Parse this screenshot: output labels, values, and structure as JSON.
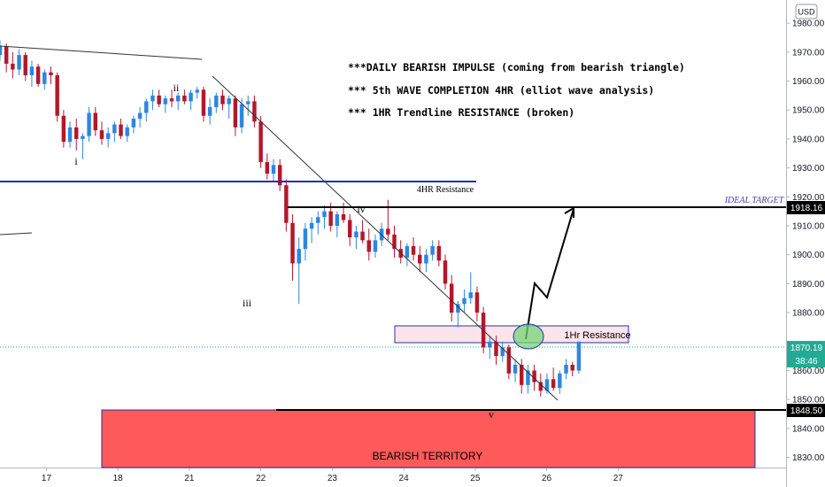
{
  "chart_data": {
    "type": "candlestick",
    "currency": "USD",
    "y_range": [
      1826.5,
      1988
    ],
    "y_ticks": [
      1980,
      1970,
      1960,
      1950,
      1940,
      1930,
      1920,
      1910,
      1900,
      1890,
      1880,
      1860,
      1850,
      1840,
      1830
    ],
    "y_tick_labels": [
      "1980.00",
      "1970.00",
      "1960.00",
      "1950.00",
      "1940.00",
      "1930.00",
      "1920.00",
      "1910.00",
      "1900.00",
      "1890.00",
      "1880.00",
      "1860.00",
      "1850.00",
      "1840.00",
      "1830.00"
    ],
    "x_range": [
      16.35,
      27.35
    ],
    "x_ticks": [
      17,
      18,
      21,
      22,
      23,
      24,
      25,
      26,
      27
    ],
    "x_tick_labels": [
      "17",
      "18",
      "21",
      "22",
      "23",
      "24",
      "25",
      "26",
      "27"
    ],
    "price_labels": {
      "target": "1918.16",
      "current": "1870.19",
      "countdown": "38:46",
      "bearish_line": "1848.50"
    },
    "price_levels": {
      "target": 1918.16,
      "current": 1870.19,
      "bearish_line": 1848.5
    },
    "candle_t_range": [
      16.35,
      24.45
    ],
    "candles_ohlc": [
      [
        1969,
        1974,
        1967,
        1972
      ],
      [
        1972,
        1973,
        1963,
        1966
      ],
      [
        1966,
        1970,
        1961,
        1964
      ],
      [
        1964,
        1971,
        1962,
        1969
      ],
      [
        1969,
        1970,
        1960,
        1962
      ],
      [
        1962,
        1967,
        1958,
        1965
      ],
      [
        1965,
        1966,
        1958,
        1959
      ],
      [
        1959,
        1964,
        1957,
        1963
      ],
      [
        1963,
        1965,
        1959,
        1962
      ],
      [
        1962,
        1963,
        1946,
        1948
      ],
      [
        1948,
        1950,
        1937,
        1939
      ],
      [
        1939,
        1946,
        1937,
        1944
      ],
      [
        1944,
        1947,
        1936,
        1940
      ],
      [
        1940,
        1942,
        1933,
        1941
      ],
      [
        1941,
        1951,
        1939,
        1949
      ],
      [
        1949,
        1951,
        1941,
        1943
      ],
      [
        1943,
        1946,
        1938,
        1940
      ],
      [
        1940,
        1944,
        1937,
        1942
      ],
      [
        1942,
        1946,
        1939,
        1945
      ],
      [
        1945,
        1947,
        1940,
        1941
      ],
      [
        1941,
        1945,
        1939,
        1944
      ],
      [
        1944,
        1948,
        1942,
        1947
      ],
      [
        1947,
        1951,
        1944,
        1949
      ],
      [
        1949,
        1954,
        1946,
        1953
      ],
      [
        1953,
        1957,
        1950,
        1955
      ],
      [
        1955,
        1957,
        1951,
        1952
      ],
      [
        1952,
        1955,
        1949,
        1954
      ],
      [
        1954,
        1957,
        1951,
        1953
      ],
      [
        1953,
        1956,
        1950,
        1955
      ],
      [
        1955,
        1957,
        1952,
        1953
      ],
      [
        1953,
        1957,
        1950,
        1956
      ],
      [
        1956,
        1958,
        1954,
        1957
      ],
      [
        1957,
        1958,
        1946,
        1948
      ],
      [
        1948,
        1954,
        1945,
        1951
      ],
      [
        1951,
        1956,
        1949,
        1955
      ],
      [
        1955,
        1957,
        1950,
        1952
      ],
      [
        1952,
        1955,
        1947,
        1954
      ],
      [
        1954,
        1955,
        1941,
        1944
      ],
      [
        1944,
        1954,
        1942,
        1952
      ],
      [
        1952,
        1955,
        1948,
        1953
      ],
      [
        1953,
        1955,
        1944,
        1946
      ],
      [
        1946,
        1948,
        1930,
        1932
      ],
      [
        1932,
        1935,
        1926,
        1928
      ],
      [
        1928,
        1933,
        1925,
        1931
      ],
      [
        1931,
        1933,
        1922,
        1924
      ],
      [
        1924,
        1926,
        1908,
        1911
      ],
      [
        1911,
        1914,
        1891,
        1897
      ],
      [
        1897,
        1906,
        1883,
        1902
      ],
      [
        1902,
        1911,
        1898,
        1909
      ],
      [
        1909,
        1913,
        1904,
        1911
      ],
      [
        1911,
        1915,
        1907,
        1913
      ],
      [
        1913,
        1917,
        1909,
        1915
      ],
      [
        1915,
        1918,
        1908,
        1910
      ],
      [
        1910,
        1915,
        1906,
        1914
      ],
      [
        1914,
        1918,
        1911,
        1912
      ],
      [
        1912,
        1914,
        1903,
        1906
      ],
      [
        1906,
        1910,
        1902,
        1908
      ],
      [
        1908,
        1912,
        1904,
        1905
      ],
      [
        1905,
        1909,
        1898,
        1901
      ],
      [
        1901,
        1907,
        1899,
        1905
      ],
      [
        1905,
        1911,
        1903,
        1909
      ],
      [
        1909,
        1919,
        1905,
        1907
      ],
      [
        1907,
        1910,
        1899,
        1902
      ],
      [
        1902,
        1905,
        1897,
        1899
      ],
      [
        1899,
        1904,
        1896,
        1903
      ],
      [
        1903,
        1906,
        1898,
        1900
      ],
      [
        1900,
        1903,
        1894,
        1897
      ],
      [
        1897,
        1902,
        1894,
        1900
      ],
      [
        1900,
        1905,
        1898,
        1903
      ],
      [
        1903,
        1905,
        1896,
        1898
      ],
      [
        1898,
        1900,
        1888,
        1890
      ],
      [
        1890,
        1893,
        1877,
        1880
      ],
      [
        1880,
        1884,
        1875,
        1883
      ],
      [
        1883,
        1888,
        1880,
        1885
      ],
      [
        1885,
        1894,
        1883,
        1887
      ],
      [
        1887,
        1889,
        1877,
        1880
      ],
      [
        1880,
        1882,
        1866,
        1868
      ],
      [
        1868,
        1872,
        1864,
        1870
      ],
      [
        1870,
        1872,
        1862,
        1865
      ],
      [
        1865,
        1870,
        1863,
        1868
      ],
      [
        1868,
        1869,
        1857,
        1859
      ],
      [
        1859,
        1864,
        1856,
        1862
      ],
      [
        1862,
        1864,
        1852,
        1855
      ],
      [
        1855,
        1862,
        1852,
        1860
      ],
      [
        1860,
        1862,
        1853,
        1856
      ],
      [
        1856,
        1859,
        1851,
        1853
      ],
      [
        1853,
        1859,
        1852,
        1857
      ],
      [
        1857,
        1861,
        1853,
        1854
      ],
      [
        1854,
        1860,
        1852,
        1859
      ],
      [
        1859,
        1864,
        1857,
        1862
      ],
      [
        1862,
        1863,
        1858,
        1860
      ],
      [
        1860,
        1870,
        1859,
        1870
      ]
    ],
    "annotations": {
      "headline_1": "***DAILY BEARISH IMPULSE (coming from bearish triangle)",
      "headline_2": "*** 5th WAVE COMPLETION 4HR (elliot wave analysis)",
      "headline_3": "*** 1HR Trendline RESISTANCE (broken)",
      "resistance_4hr": "4HR Resistance",
      "ideal_target": "IDEAL TARGET",
      "resistance_1hr": "1Hr Resistance",
      "bearish_territory": "BEARISH TERRITORY",
      "wave_i": "i",
      "wave_ii": "ii",
      "wave_iii": "iii",
      "wave_iv": "iv",
      "wave_v": "v"
    },
    "colors": {
      "up": "#2e86de",
      "down": "#b2182b",
      "resistance_4hr": "#1f2fb8",
      "bearish_zone": "#ff5a5a",
      "zone_1hr": "#fce4ec",
      "current_price": "#22ab94",
      "circle": "#7ed67e",
      "target_text": "#4a3bb5"
    }
  }
}
